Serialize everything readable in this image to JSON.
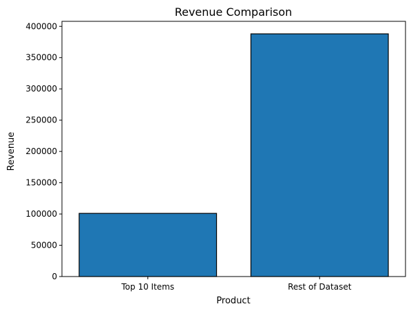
{
  "chart_data": {
    "type": "bar",
    "title": "Revenue Comparison",
    "xlabel": "Product",
    "ylabel": "Revenue",
    "categories": [
      "Top 10 Items",
      "Rest of Dataset"
    ],
    "values": [
      101000,
      388000
    ],
    "ylim": [
      0,
      408000
    ],
    "yticks": [
      0,
      50000,
      100000,
      150000,
      200000,
      250000,
      300000,
      350000,
      400000
    ],
    "grid": false,
    "bar_color": "#1f77b4",
    "bar_edge_color": "#000000"
  }
}
